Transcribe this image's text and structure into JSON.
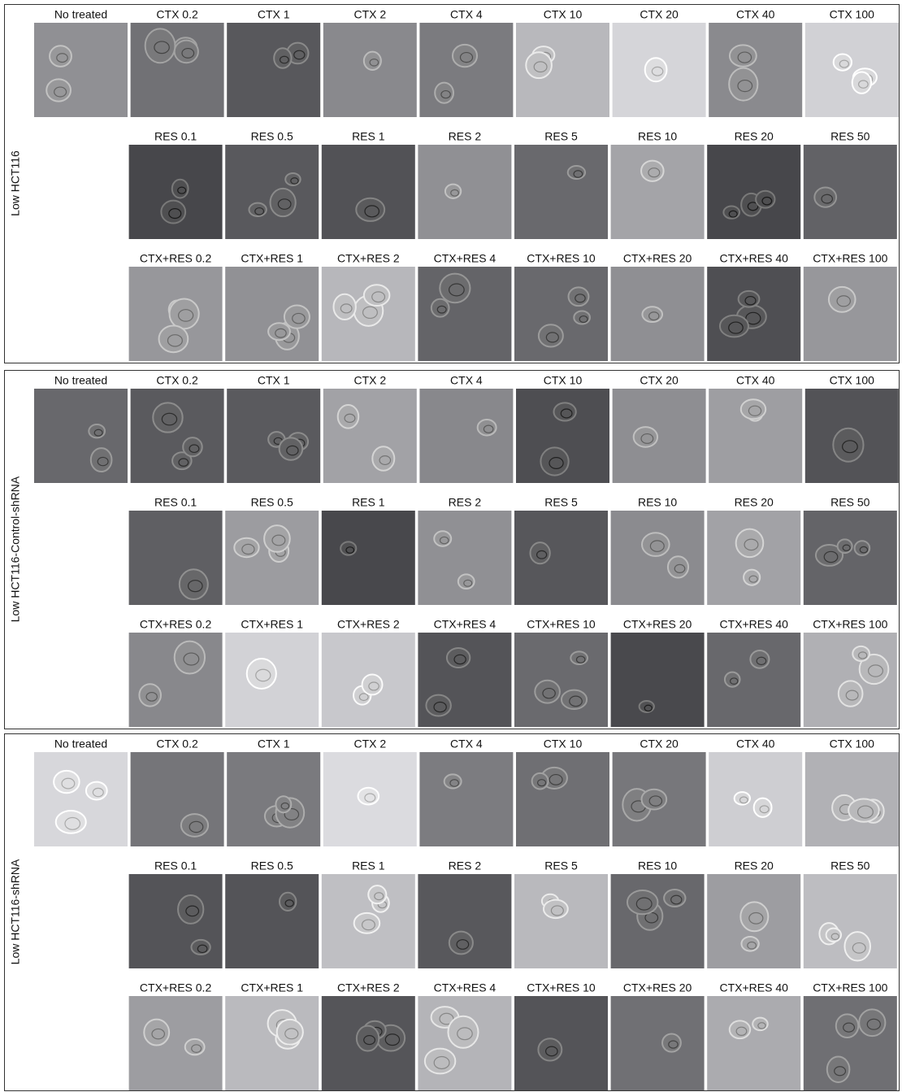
{
  "panels": [
    {
      "label": "Low HCT116",
      "rows": [
        {
          "labels": [
            "No treated",
            "CTX 0.2",
            "CTX 1",
            "CTX 2",
            "CTX 4",
            "CTX 10",
            "CTX 20",
            "CTX 40",
            "CTX 100"
          ]
        },
        {
          "labels": [
            "RES 0.1",
            "RES 0.5",
            "RES 1",
            "RES 2",
            "RES 5",
            "RES 10",
            "RES 20",
            "RES 50"
          ]
        },
        {
          "labels": [
            "CTX+RES 0.2",
            "CTX+RES 1",
            "CTX+RES 2",
            "CTX+RES 4",
            "CTX+RES 10",
            "CTX+RES 20",
            "CTX+RES 40",
            "CTX+RES 100"
          ]
        }
      ]
    },
    {
      "label": "Low HCT116-Control-shRNA",
      "rows": [
        {
          "labels": [
            "No treated",
            "CTX 0.2",
            "CTX 1",
            "CTX 2",
            "CTX 4",
            "CTX 10",
            "CTX 20",
            "CTX 40",
            "CTX 100"
          ]
        },
        {
          "labels": [
            "RES 0.1",
            "RES 0.5",
            "RES 1",
            "RES 2",
            "RES 5",
            "RES 10",
            "RES 20",
            "RES 50"
          ]
        },
        {
          "labels": [
            "CTX+RES 0.2",
            "CTX+RES 1",
            "CTX+RES 2",
            "CTX+RES 4",
            "CTX+RES 10",
            "CTX+RES 20",
            "CTX+RES 40",
            "CTX+RES 100"
          ]
        }
      ]
    },
    {
      "label": "Low HCT116-shRNA",
      "rows": [
        {
          "labels": [
            "No treated",
            "CTX 0.2",
            "CTX 1",
            "CTX 2",
            "CTX 4",
            "CTX 10",
            "CTX 20",
            "CTX 40",
            "CTX 100"
          ]
        },
        {
          "labels": [
            "RES 0.1",
            "RES 0.5",
            "RES 1",
            "RES 2",
            "RES 5",
            "RES 10",
            "RES 20",
            "RES 50"
          ]
        },
        {
          "labels": [
            "CTX+RES 0.2",
            "CTX+RES 1",
            "CTX+RES 2",
            "CTX+RES 4",
            "CTX+RES 10",
            "CTX+RES 20",
            "CTX+RES 40",
            "CTX+RES 100"
          ]
        }
      ]
    }
  ]
}
